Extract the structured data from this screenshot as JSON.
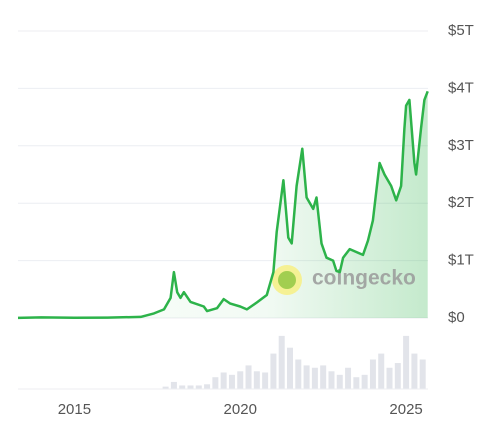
{
  "watermark": "coingecko",
  "chart_data": {
    "type": "line",
    "x": [
      2013.3,
      2014,
      2015,
      2016,
      2017,
      2017.4,
      2017.7,
      2017.9,
      2018.0,
      2018.1,
      2018.2,
      2018.3,
      2018.5,
      2018.9,
      2019.0,
      2019.3,
      2019.5,
      2019.7,
      2020.0,
      2020.2,
      2020.5,
      2020.8,
      2021.0,
      2021.1,
      2021.3,
      2021.45,
      2021.55,
      2021.7,
      2021.87,
      2022.0,
      2022.2,
      2022.3,
      2022.45,
      2022.6,
      2022.8,
      2022.9,
      2023.0,
      2023.1,
      2023.3,
      2023.5,
      2023.7,
      2023.85,
      2024.0,
      2024.2,
      2024.35,
      2024.55,
      2024.7,
      2024.85,
      2024.95,
      2025.0,
      2025.1,
      2025.25,
      2025.3,
      2025.45,
      2025.55,
      2025.65
    ],
    "series": [
      {
        "color": "#2db34a",
        "values": [
          0.0015,
          0.01,
          0.005,
          0.007,
          0.02,
          0.08,
          0.15,
          0.35,
          0.8,
          0.45,
          0.35,
          0.45,
          0.28,
          0.2,
          0.12,
          0.17,
          0.33,
          0.25,
          0.2,
          0.15,
          0.27,
          0.4,
          0.8,
          1.5,
          2.4,
          1.4,
          1.3,
          2.3,
          2.95,
          2.1,
          1.9,
          2.1,
          1.3,
          1.05,
          1.0,
          0.82,
          0.8,
          1.05,
          1.2,
          1.15,
          1.1,
          1.35,
          1.7,
          2.7,
          2.5,
          2.3,
          2.05,
          2.3,
          3.3,
          3.7,
          3.8,
          2.7,
          2.5,
          3.3,
          3.8,
          3.95
        ]
      }
    ],
    "volume": {
      "color": "#e2e4ea",
      "x": [
        2017.75,
        2018.0,
        2018.25,
        2018.5,
        2018.75,
        2019.0,
        2019.25,
        2019.5,
        2019.75,
        2020.0,
        2020.25,
        2020.5,
        2020.75,
        2021.0,
        2021.25,
        2021.5,
        2021.75,
        2022.0,
        2022.25,
        2022.5,
        2022.75,
        2023.0,
        2023.25,
        2023.5,
        2023.75,
        2024.0,
        2024.25,
        2024.5,
        2024.75,
        2025.0,
        2025.25,
        2025.5
      ],
      "values": [
        0.02,
        0.06,
        0.03,
        0.03,
        0.03,
        0.04,
        0.1,
        0.14,
        0.12,
        0.15,
        0.2,
        0.15,
        0.14,
        0.3,
        0.45,
        0.35,
        0.25,
        0.2,
        0.18,
        0.2,
        0.15,
        0.12,
        0.18,
        0.1,
        0.12,
        0.25,
        0.3,
        0.18,
        0.22,
        0.45,
        0.3,
        0.25
      ]
    },
    "xlim": [
      2013.3,
      2025.66
    ],
    "xticks": [
      2015,
      2020,
      2025
    ],
    "ylim": [
      0,
      5
    ],
    "yticks": [
      {
        "value": 0,
        "label": "$0"
      },
      {
        "value": 1,
        "label": "$1T"
      },
      {
        "value": 2,
        "label": "$2T"
      },
      {
        "value": 3,
        "label": "$3T"
      },
      {
        "value": 4,
        "label": "$4T"
      },
      {
        "value": 5,
        "label": "$5T"
      }
    ],
    "y2lim": [
      0,
      0.5
    ],
    "grid": true
  }
}
